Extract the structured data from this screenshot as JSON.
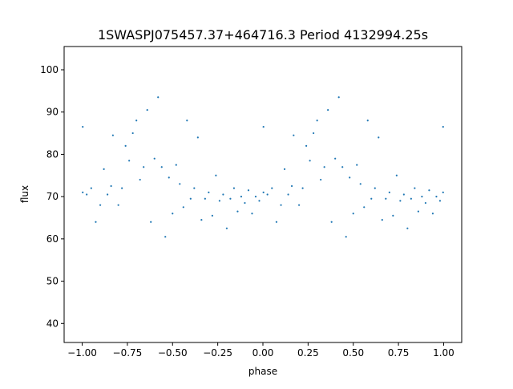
{
  "chart_data": {
    "type": "scatter",
    "title": "1SWASPJ075457.37+464716.3 Period 4132994.25s",
    "xlabel": "phase",
    "ylabel": "flux",
    "xlim": [
      -1.1,
      1.1
    ],
    "ylim": [
      35.5,
      105.5
    ],
    "x_ticks": [
      -1.0,
      -0.75,
      -0.5,
      -0.25,
      0.0,
      0.25,
      0.5,
      0.75,
      1.0
    ],
    "x_tick_labels": [
      "−1.00",
      "−0.75",
      "−0.50",
      "−0.25",
      "0.00",
      "0.25",
      "0.50",
      "0.75",
      "1.00"
    ],
    "y_ticks": [
      40,
      50,
      60,
      70,
      80,
      90,
      100
    ],
    "y_tick_labels": [
      "40",
      "50",
      "60",
      "70",
      "80",
      "90",
      "100"
    ],
    "grid": false,
    "legend": "none",
    "marker_color": "#1f77b4",
    "series": [
      {
        "phase_folded_points": [
          [
            -0.997,
            71.0
          ],
          [
            -0.997,
            86.5
          ],
          [
            -0.975,
            70.5
          ],
          [
            -0.95,
            72.0
          ],
          [
            -0.925,
            64.0
          ],
          [
            -0.9,
            68.0
          ],
          [
            -0.88,
            76.5
          ],
          [
            -0.86,
            70.5
          ],
          [
            -0.84,
            72.5
          ],
          [
            -0.83,
            84.5
          ],
          [
            -0.8,
            68.0
          ],
          [
            -0.78,
            72.0
          ],
          [
            -0.76,
            82.0
          ],
          [
            -0.74,
            78.5
          ],
          [
            -0.72,
            85.0
          ],
          [
            -0.7,
            88.0
          ],
          [
            -0.68,
            74.0
          ],
          [
            -0.66,
            77.0
          ],
          [
            -0.64,
            90.5
          ],
          [
            -0.62,
            64.0
          ],
          [
            -0.6,
            79.0
          ],
          [
            -0.58,
            93.5
          ],
          [
            -0.56,
            77.0
          ],
          [
            -0.54,
            60.5
          ],
          [
            -0.52,
            74.5
          ],
          [
            -0.5,
            66.0
          ],
          [
            -0.48,
            77.5
          ],
          [
            -0.46,
            73.0
          ],
          [
            -0.44,
            67.5
          ],
          [
            -0.42,
            88.0
          ],
          [
            -0.4,
            69.5
          ],
          [
            -0.38,
            72.0
          ],
          [
            -0.36,
            84.0
          ],
          [
            -0.34,
            64.5
          ],
          [
            -0.32,
            69.5
          ],
          [
            -0.3,
            71.0
          ],
          [
            -0.28,
            65.5
          ],
          [
            -0.26,
            75.0
          ],
          [
            -0.24,
            69.0
          ],
          [
            -0.22,
            70.5
          ],
          [
            -0.2,
            62.5
          ],
          [
            -0.18,
            69.5
          ],
          [
            -0.16,
            72.0
          ],
          [
            -0.14,
            66.5
          ],
          [
            -0.12,
            70.0
          ],
          [
            -0.1,
            68.5
          ],
          [
            -0.08,
            71.5
          ],
          [
            -0.06,
            66.0
          ],
          [
            -0.04,
            70.0
          ],
          [
            -0.02,
            69.0
          ],
          [
            0.003,
            71.0
          ],
          [
            0.003,
            86.5
          ],
          [
            0.025,
            70.5
          ],
          [
            0.05,
            72.0
          ],
          [
            0.075,
            64.0
          ],
          [
            0.1,
            68.0
          ],
          [
            0.12,
            76.5
          ],
          [
            0.14,
            70.5
          ],
          [
            0.16,
            72.5
          ],
          [
            0.17,
            84.5
          ],
          [
            0.2,
            68.0
          ],
          [
            0.22,
            72.0
          ],
          [
            0.24,
            82.0
          ],
          [
            0.26,
            78.5
          ],
          [
            0.28,
            85.0
          ],
          [
            0.3,
            88.0
          ],
          [
            0.32,
            74.0
          ],
          [
            0.34,
            77.0
          ],
          [
            0.36,
            90.5
          ],
          [
            0.38,
            64.0
          ],
          [
            0.4,
            79.0
          ],
          [
            0.42,
            93.5
          ],
          [
            0.44,
            77.0
          ],
          [
            0.46,
            60.5
          ],
          [
            0.48,
            74.5
          ],
          [
            0.5,
            66.0
          ],
          [
            0.52,
            77.5
          ],
          [
            0.54,
            73.0
          ],
          [
            0.56,
            67.5
          ],
          [
            0.58,
            88.0
          ],
          [
            0.6,
            69.5
          ],
          [
            0.62,
            72.0
          ],
          [
            0.64,
            84.0
          ],
          [
            0.66,
            64.5
          ],
          [
            0.68,
            69.5
          ],
          [
            0.7,
            71.0
          ],
          [
            0.72,
            65.5
          ],
          [
            0.74,
            75.0
          ],
          [
            0.76,
            69.0
          ],
          [
            0.78,
            70.5
          ],
          [
            0.8,
            62.5
          ],
          [
            0.82,
            69.5
          ],
          [
            0.84,
            72.0
          ],
          [
            0.86,
            66.5
          ],
          [
            0.88,
            70.0
          ],
          [
            0.9,
            68.5
          ],
          [
            0.92,
            71.5
          ],
          [
            0.94,
            66.0
          ],
          [
            0.96,
            70.0
          ],
          [
            0.98,
            69.0
          ],
          [
            0.997,
            71.0
          ],
          [
            0.997,
            86.5
          ]
        ]
      }
    ]
  }
}
